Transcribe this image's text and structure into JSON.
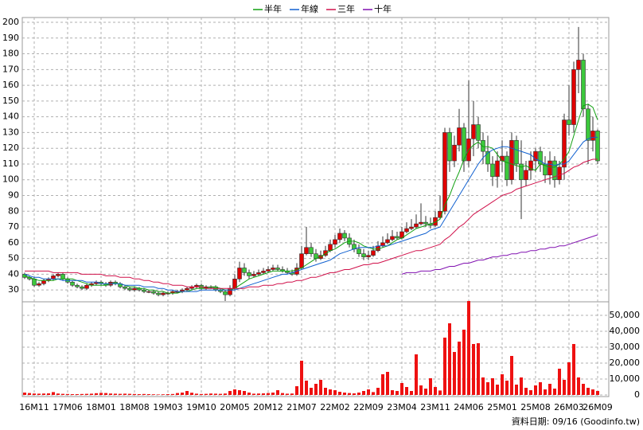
{
  "chart_data": {
    "type": "candlestick",
    "legend": "top",
    "footnote": "資料日期: 09/16 (Goodinfo.tw)",
    "up_color": "#e00000",
    "down_color": "#3cc83c",
    "grid": true,
    "categories": [
      null,
      null,
      "16M11",
      null,
      null,
      null,
      null,
      null,
      null,
      "17M06",
      null,
      null,
      null,
      null,
      null,
      null,
      "18M01",
      null,
      null,
      null,
      null,
      null,
      null,
      "18M08",
      null,
      null,
      null,
      null,
      null,
      null,
      "19M03",
      null,
      null,
      null,
      null,
      null,
      null,
      "19M10",
      null,
      null,
      null,
      null,
      null,
      null,
      "20M05",
      null,
      null,
      null,
      null,
      null,
      null,
      "20M12",
      null,
      null,
      null,
      null,
      null,
      null,
      "21M07",
      null,
      null,
      null,
      null,
      null,
      null,
      "22M02",
      null,
      null,
      null,
      null,
      null,
      null,
      "22M09",
      null,
      null,
      null,
      null,
      null,
      null,
      "23M04",
      null,
      null,
      null,
      null,
      null,
      null,
      "23M11",
      null,
      null,
      null,
      null,
      null,
      null,
      "24M06",
      null,
      null,
      null,
      null,
      null,
      null,
      "25M01",
      null,
      null,
      null,
      null,
      null,
      null,
      "25M08",
      null,
      null,
      null,
      null,
      null,
      null,
      "26M03",
      null,
      null,
      null,
      null,
      null,
      "26M09"
    ],
    "open": [
      40,
      38,
      37,
      33,
      34,
      36,
      37,
      39,
      40,
      37,
      35,
      33,
      32,
      31,
      33,
      34,
      35,
      34,
      33,
      35,
      34,
      32,
      31,
      30,
      31,
      30,
      29,
      29,
      28,
      27,
      28,
      28,
      29,
      29,
      30,
      31,
      32,
      33,
      31,
      32,
      32,
      30,
      29,
      27,
      31,
      37,
      44,
      41,
      39,
      40,
      41,
      42,
      43,
      44,
      43,
      42,
      41,
      40,
      44,
      53,
      57,
      53,
      50,
      52,
      55,
      59,
      62,
      66,
      63,
      59,
      56,
      53,
      51,
      52,
      55,
      58,
      60,
      62,
      64,
      63,
      67,
      69,
      70,
      72,
      73,
      72,
      71,
      76,
      80,
      130,
      112,
      122,
      133,
      112,
      126,
      135,
      125,
      118,
      110,
      102,
      112,
      115,
      100,
      125,
      110,
      100,
      106,
      112,
      118,
      110,
      103,
      112,
      100,
      108,
      138,
      135,
      170,
      176,
      145,
      125,
      131
    ],
    "high": [
      41,
      39,
      38,
      35,
      37,
      38,
      40,
      41,
      41,
      38,
      36,
      34,
      33,
      34,
      35,
      36,
      36,
      35,
      36,
      36,
      35,
      33,
      32,
      32,
      32,
      31,
      30,
      30,
      29,
      29,
      29,
      30,
      30,
      31,
      32,
      33,
      34,
      34,
      33,
      33,
      33,
      31,
      30,
      33,
      40,
      48,
      47,
      43,
      42,
      43,
      44,
      45,
      46,
      46,
      45,
      44,
      43,
      47,
      58,
      70,
      60,
      56,
      55,
      58,
      62,
      65,
      69,
      68,
      66,
      62,
      59,
      56,
      55,
      58,
      61,
      64,
      66,
      68,
      67,
      70,
      73,
      75,
      78,
      85,
      77,
      76,
      80,
      90,
      133,
      133,
      128,
      145,
      136,
      163,
      150,
      140,
      130,
      128,
      115,
      118,
      125,
      118,
      130,
      128,
      125,
      112,
      118,
      120,
      121,
      115,
      118,
      115,
      112,
      142,
      160,
      175,
      197,
      180,
      148,
      140,
      132
    ],
    "low": [
      37,
      36,
      32,
      32,
      33,
      35,
      36,
      38,
      36,
      34,
      32,
      31,
      30,
      30,
      32,
      33,
      33,
      32,
      32,
      33,
      31,
      30,
      29,
      29,
      29,
      28,
      28,
      27,
      26,
      26,
      27,
      27,
      28,
      28,
      29,
      30,
      31,
      30,
      30,
      31,
      29,
      28,
      23,
      26,
      30,
      35,
      39,
      37,
      38,
      39,
      40,
      41,
      42,
      42,
      41,
      40,
      39,
      39,
      43,
      52,
      51,
      48,
      49,
      51,
      54,
      57,
      60,
      61,
      57,
      54,
      51,
      49,
      49,
      51,
      54,
      57,
      59,
      61,
      62,
      62,
      66,
      68,
      69,
      71,
      70,
      69,
      70,
      75,
      78,
      105,
      108,
      118,
      105,
      108,
      115,
      120,
      110,
      105,
      96,
      95,
      105,
      96,
      97,
      105,
      75,
      96,
      100,
      105,
      105,
      98,
      97,
      95,
      97,
      100,
      128,
      130,
      155,
      140,
      110,
      118,
      110
    ],
    "close": [
      38,
      37,
      33,
      34,
      36,
      37,
      39,
      40,
      37,
      35,
      33,
      32,
      31,
      33,
      34,
      35,
      34,
      33,
      35,
      34,
      32,
      31,
      30,
      31,
      30,
      29,
      29,
      28,
      27,
      28,
      28,
      29,
      29,
      30,
      31,
      32,
      33,
      31,
      32,
      32,
      30,
      29,
      27,
      31,
      37,
      44,
      41,
      39,
      40,
      41,
      42,
      43,
      44,
      43,
      42,
      41,
      40,
      44,
      53,
      57,
      53,
      50,
      52,
      55,
      59,
      62,
      66,
      63,
      59,
      56,
      53,
      51,
      52,
      55,
      58,
      60,
      62,
      64,
      63,
      67,
      69,
      70,
      72,
      73,
      72,
      71,
      76,
      80,
      130,
      112,
      122,
      133,
      112,
      126,
      135,
      125,
      118,
      110,
      102,
      112,
      115,
      100,
      125,
      110,
      100,
      106,
      112,
      118,
      110,
      103,
      112,
      100,
      108,
      138,
      135,
      170,
      176,
      145,
      125,
      131,
      112
    ],
    "ylim": [
      23,
      200
    ],
    "yticks": [
      30,
      40,
      50,
      60,
      70,
      80,
      90,
      100,
      110,
      120,
      130,
      140,
      150,
      160,
      170,
      180,
      190,
      200
    ],
    "series": [
      {
        "name": "半年",
        "color": "#10a010",
        "values": [
          39,
          38,
          37,
          36,
          36,
          36,
          36,
          37,
          37,
          37,
          37,
          36,
          35,
          34,
          33,
          33,
          33,
          33,
          34,
          34,
          34,
          33,
          32,
          32,
          31,
          31,
          30,
          30,
          29,
          29,
          28,
          28,
          28,
          29,
          29,
          30,
          31,
          31,
          31,
          32,
          32,
          31,
          30,
          30,
          31,
          33,
          35,
          37,
          38,
          39,
          40,
          41,
          42,
          42,
          42,
          42,
          42,
          43,
          44,
          46,
          48,
          50,
          51,
          53,
          55,
          56,
          58,
          60,
          61,
          61,
          60,
          58,
          57,
          56,
          56,
          57,
          58,
          60,
          62,
          63,
          65,
          67,
          69,
          70,
          71,
          72,
          73,
          75,
          84,
          90,
          98,
          105,
          113,
          119,
          122,
          124,
          121,
          121,
          120,
          116,
          112,
          111,
          110,
          109,
          108,
          109,
          107,
          106,
          110,
          109,
          108,
          108,
          110,
          113,
          118,
          128,
          138,
          147,
          148,
          146,
          138
        ]
      },
      {
        "name": "年線",
        "color": "#1060d0",
        "values": [
          40,
          39,
          38,
          38,
          37,
          37,
          37,
          37,
          36,
          36,
          36,
          36,
          36,
          35,
          35,
          35,
          34,
          34,
          34,
          34,
          34,
          33,
          33,
          33,
          33,
          32,
          32,
          32,
          31,
          31,
          30,
          30,
          29,
          29,
          29,
          29,
          29,
          30,
          30,
          30,
          30,
          30,
          30,
          30,
          30,
          31,
          32,
          33,
          34,
          35,
          36,
          37,
          38,
          39,
          40,
          40,
          41,
          42,
          43,
          44,
          45,
          46,
          47,
          48,
          49,
          51,
          53,
          54,
          55,
          56,
          57,
          57,
          57,
          57,
          58,
          58,
          58,
          59,
          60,
          61,
          62,
          63,
          64,
          65,
          66,
          68,
          69,
          70,
          75,
          80,
          85,
          90,
          95,
          100,
          105,
          110,
          114,
          117,
          119,
          120,
          121,
          121,
          120,
          119,
          118,
          117,
          116,
          113,
          112,
          110,
          110,
          109,
          110,
          110,
          112,
          116,
          120,
          124,
          126,
          127,
          127
        ]
      },
      {
        "name": "三年",
        "color": "#d0104a",
        "values": [
          42,
          42,
          42,
          42,
          42,
          42,
          41,
          41,
          41,
          41,
          41,
          41,
          40,
          40,
          40,
          40,
          40,
          39,
          39,
          39,
          38,
          38,
          38,
          37,
          37,
          36,
          36,
          35,
          35,
          34,
          34,
          33,
          33,
          33,
          32,
          32,
          32,
          32,
          31,
          31,
          31,
          31,
          31,
          31,
          31,
          31,
          31,
          32,
          32,
          32,
          33,
          33,
          33,
          34,
          34,
          35,
          35,
          36,
          36,
          37,
          38,
          38,
          39,
          40,
          41,
          41,
          42,
          43,
          43,
          44,
          45,
          46,
          46,
          47,
          47,
          48,
          49,
          50,
          51,
          52,
          53,
          54,
          55,
          55,
          56,
          57,
          58,
          59,
          62,
          64,
          67,
          70,
          72,
          75,
          78,
          80,
          82,
          84,
          86,
          88,
          90,
          91,
          92,
          94,
          95,
          96,
          97,
          98,
          99,
          100,
          101,
          102,
          103,
          104,
          106,
          108,
          109,
          111,
          112,
          113,
          113
        ]
      },
      {
        "name": "十年",
        "color": "#8010b0",
        "values": [
          null,
          null,
          null,
          null,
          null,
          null,
          null,
          null,
          null,
          null,
          null,
          null,
          null,
          null,
          null,
          null,
          null,
          null,
          null,
          null,
          null,
          null,
          null,
          null,
          null,
          null,
          null,
          null,
          null,
          null,
          null,
          null,
          null,
          null,
          null,
          null,
          null,
          null,
          null,
          null,
          null,
          null,
          null,
          null,
          null,
          null,
          null,
          null,
          null,
          null,
          null,
          null,
          null,
          null,
          null,
          null,
          null,
          null,
          null,
          null,
          null,
          null,
          null,
          null,
          null,
          null,
          null,
          null,
          null,
          null,
          null,
          null,
          null,
          null,
          null,
          null,
          null,
          null,
          null,
          40,
          41,
          41,
          41,
          42,
          42,
          42,
          43,
          43,
          44,
          45,
          45,
          46,
          47,
          47,
          48,
          49,
          49,
          50,
          51,
          51,
          52,
          52,
          53,
          53,
          54,
          54,
          55,
          55,
          56,
          56,
          57,
          57,
          58,
          58,
          59,
          60,
          61,
          62,
          63,
          64,
          65
        ]
      }
    ],
    "volume": {
      "color": "#ee1111",
      "axis": "y2",
      "values": [
        1500,
        1200,
        900,
        800,
        900,
        1000,
        1800,
        900,
        700,
        600,
        500,
        500,
        600,
        700,
        800,
        1100,
        1300,
        1200,
        900,
        800,
        700,
        800,
        700,
        600,
        500,
        600,
        500,
        400,
        300,
        400,
        500,
        600,
        1200,
        1500,
        2500,
        1400,
        800,
        600,
        700,
        900,
        800,
        700,
        900,
        2500,
        3500,
        3000,
        2500,
        1500,
        800,
        900,
        1000,
        1200,
        1500,
        3000,
        1200,
        800,
        900,
        5500,
        21500,
        9000,
        4500,
        7000,
        9500,
        4500,
        3500,
        3000,
        2000,
        1500,
        1200,
        1000,
        1500,
        2500,
        3500,
        1800,
        4500,
        13000,
        14500,
        3000,
        2500,
        7500,
        5000,
        2500,
        25500,
        6000,
        4000,
        10500,
        5000,
        2800,
        36000,
        45000,
        27000,
        33500,
        41000,
        59000,
        32000,
        32500,
        11000,
        8000,
        10500,
        6500,
        13000,
        9000,
        24500,
        6500,
        11000,
        4500,
        3000,
        6000,
        8000,
        3500,
        7000,
        4000,
        16500,
        9500,
        20500,
        32000,
        11000,
        7000,
        4500,
        3500,
        2500
      ]
    },
    "y2lim": [
      0,
      58000
    ],
    "y2ticks": [
      0,
      {
        "value": 10000,
        "label": "10,000"
      },
      {
        "value": 20000,
        "label": "20,000"
      },
      {
        "value": 30000,
        "label": "30,000"
      },
      {
        "value": 40000,
        "label": "40,000"
      },
      {
        "value": 50000,
        "label": "50,000"
      }
    ]
  }
}
